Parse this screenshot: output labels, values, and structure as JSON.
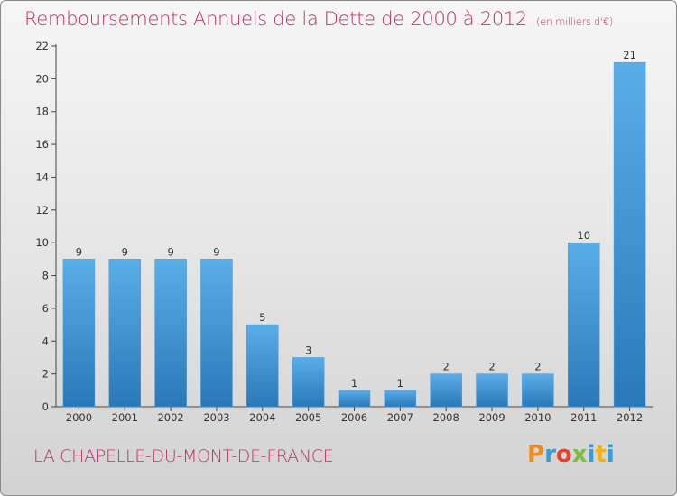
{
  "title": "Remboursements Annuels de la Dette de 2000 à 2012",
  "unit": "(en milliers d'€)",
  "commune": "LA CHAPELLE-DU-MONT-DE-FRANCE",
  "logo": {
    "text": "Proxiti",
    "letter_colors": [
      "#f08c1e",
      "#3a9bd8",
      "#e8402a",
      "#7bbf3a",
      "#3a9bd8",
      "#f0b21e",
      "#3a9bd8"
    ]
  },
  "colors": {
    "bar_top": "#5aaee8",
    "bar_bottom": "#2a78b8",
    "title": "#c0306a",
    "axis": "#444444"
  },
  "chart_data": {
    "type": "bar",
    "categories": [
      "2000",
      "2001",
      "2002",
      "2003",
      "2004",
      "2005",
      "2006",
      "2007",
      "2008",
      "2009",
      "2010",
      "2011",
      "2012"
    ],
    "values": [
      9,
      9,
      9,
      9,
      5,
      3,
      1,
      1,
      2,
      2,
      2,
      10,
      21
    ],
    "data_labels": [
      "9",
      "9",
      "9",
      "9",
      "5",
      "3",
      "1",
      "1",
      "2",
      "2",
      "2",
      "10",
      "21"
    ],
    "y_ticks": [
      0,
      2,
      4,
      6,
      8,
      10,
      12,
      14,
      16,
      18,
      20,
      22
    ],
    "ylim": [
      0,
      22
    ],
    "xlabel": "",
    "ylabel": "",
    "grid": false,
    "legend": "none"
  }
}
